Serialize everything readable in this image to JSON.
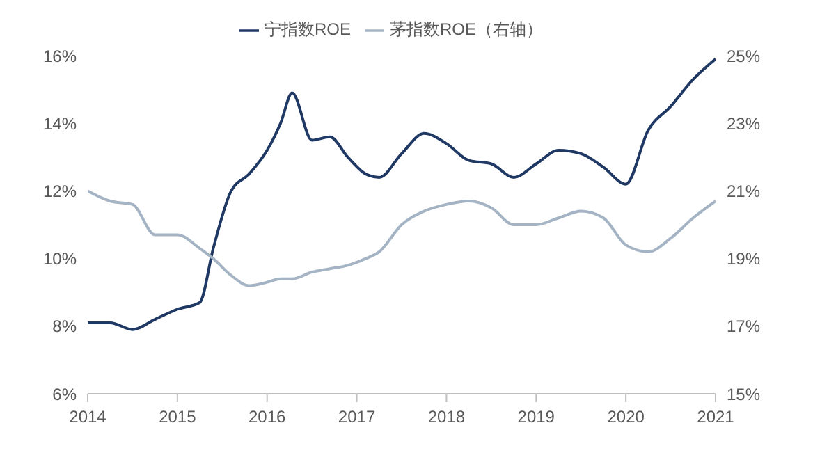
{
  "chart_data": {
    "type": "line",
    "x": [
      2014,
      2014.25,
      2014.5,
      2014.75,
      2015,
      2015.25,
      2015.4,
      2015.6,
      2015.8,
      2016,
      2016.15,
      2016.28,
      2016.5,
      2016.7,
      2016.9,
      2017.1,
      2017.25,
      2017.5,
      2017.75,
      2018,
      2018.25,
      2018.5,
      2018.75,
      2019,
      2019.25,
      2019.5,
      2019.75,
      2020,
      2020.25,
      2020.5,
      2020.75,
      2021
    ],
    "series": [
      {
        "name": "宁指数ROE",
        "color": "#1f3864",
        "values": [
          8.1,
          8.1,
          7.9,
          8.2,
          8.5,
          8.7,
          10.3,
          12.0,
          12.5,
          13.2,
          14.0,
          14.9,
          13.5,
          13.6,
          13.0,
          12.5,
          12.4,
          13.1,
          13.7,
          13.4,
          12.9,
          12.8,
          12.4,
          12.8,
          13.2,
          13.1,
          12.7,
          12.2,
          13.8,
          14.5,
          15.3,
          15.9
        ]
      },
      {
        "name": "茅指数ROE（右轴）",
        "color": "#a5b4c4",
        "axis": "y2",
        "values": [
          21.0,
          20.7,
          20.6,
          19.7,
          19.7,
          19.3,
          19.0,
          18.5,
          18.2,
          18.3,
          18.4,
          18.4,
          18.6,
          18.7,
          18.8,
          19.0,
          19.2,
          20.0,
          20.4,
          20.6,
          20.7,
          20.5,
          20.0,
          20.0,
          20.2,
          20.4,
          20.2,
          19.4,
          19.2,
          19.6,
          20.2,
          20.7
        ]
      }
    ],
    "xlim": [
      2014,
      2021
    ],
    "xticks": [
      2014,
      2015,
      2016,
      2017,
      2018,
      2019,
      2020,
      2021
    ],
    "ylim": [
      6,
      16
    ],
    "yticks": [
      {
        "value": 6,
        "label": "6%"
      },
      {
        "value": 8,
        "label": "8%"
      },
      {
        "value": 10,
        "label": "10%"
      },
      {
        "value": 12,
        "label": "12%"
      },
      {
        "value": 14,
        "label": "14%"
      },
      {
        "value": 16,
        "label": "16%"
      }
    ],
    "y2lim": [
      15,
      25
    ],
    "y2ticks": [
      {
        "value": 15,
        "label": "15%"
      },
      {
        "value": 17,
        "label": "17%"
      },
      {
        "value": 19,
        "label": "19%"
      },
      {
        "value": 21,
        "label": "21%"
      },
      {
        "value": 23,
        "label": "23%"
      },
      {
        "value": 25,
        "label": "25%"
      }
    ],
    "legend": "top",
    "grid": false,
    "marker": "none",
    "line_style": "solid"
  }
}
